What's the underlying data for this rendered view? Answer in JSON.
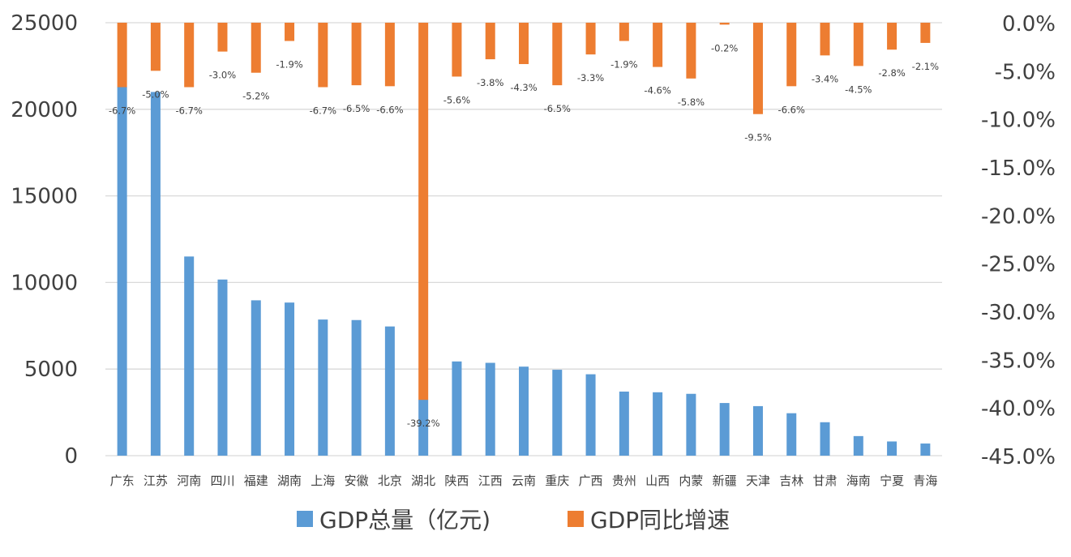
{
  "chart_data": {
    "type": "bar",
    "categories": [
      "广东",
      "江苏",
      "河南",
      "四川",
      "福建",
      "湖南",
      "上海",
      "安徽",
      "北京",
      "湖北",
      "陕西",
      "江西",
      "云南",
      "重庆",
      "广西",
      "贵州",
      "山西",
      "内蒙",
      "新疆",
      "天津",
      "吉林",
      "甘肃",
      "海南",
      "宁夏",
      "青海"
    ],
    "series": [
      {
        "name": "GDP总量（亿元)",
        "axis": "left",
        "color": "#5B9BD5",
        "values": [
          21300,
          21000,
          11500,
          10170,
          8970,
          8840,
          7860,
          7830,
          7460,
          3240,
          5440,
          5360,
          5140,
          4960,
          4700,
          3700,
          3660,
          3570,
          3040,
          2860,
          2450,
          1930,
          1130,
          820,
          700
        ]
      },
      {
        "name": "GDP同比增速",
        "axis": "right",
        "color": "#ED7D31",
        "values": [
          -6.7,
          -5.0,
          -6.7,
          -3.0,
          -5.2,
          -1.9,
          -6.7,
          -6.5,
          -6.6,
          -39.2,
          -5.6,
          -3.8,
          -4.3,
          -6.5,
          -3.3,
          -1.9,
          -4.6,
          -5.8,
          -0.2,
          -9.5,
          -6.6,
          -3.4,
          -4.5,
          -2.8,
          -2.1
        ],
        "labels": [
          "-6.7%",
          "-5.0%",
          "-6.7%",
          "-3.0%",
          "-5.2%",
          "-1.9%",
          "-6.7%",
          "-6.5%",
          "-6.6%",
          "-39.2%",
          "-5.6%",
          "-3.8%",
          "-4.3%",
          "-6.5%",
          "-3.3%",
          "-1.9%",
          "-4.6%",
          "-5.8%",
          "-0.2%",
          "-9.5%",
          "-6.6%",
          "-3.4%",
          "-4.5%",
          "-2.8%",
          "-2.1%"
        ]
      }
    ],
    "left_axis": {
      "ylim": [
        0,
        25000
      ],
      "ticks": [
        "0",
        "5000",
        "10000",
        "15000",
        "20000",
        "25000"
      ]
    },
    "right_axis": {
      "ylim": [
        -45,
        0
      ],
      "ticks": [
        "0.0%",
        "-5.0%",
        "-10.0%",
        "-15.0%",
        "-20.0%",
        "-25.0%",
        "-30.0%",
        "-35.0%",
        "-40.0%",
        "-45.0%"
      ]
    },
    "grid": true,
    "legend_position": "bottom",
    "legend": [
      {
        "label": "GDP总量（亿元)",
        "color": "#5B9BD5"
      },
      {
        "label": "GDP同比增速",
        "color": "#ED7D31"
      }
    ]
  }
}
